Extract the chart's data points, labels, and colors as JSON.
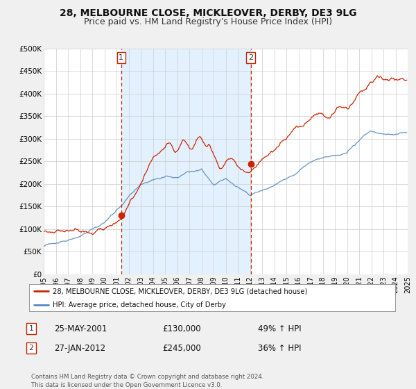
{
  "title": "28, MELBOURNE CLOSE, MICKLEOVER, DERBY, DE3 9LG",
  "subtitle": "Price paid vs. HM Land Registry's House Price Index (HPI)",
  "legend_line1": "28, MELBOURNE CLOSE, MICKLEOVER, DERBY, DE3 9LG (detached house)",
  "legend_line2": "HPI: Average price, detached house, City of Derby",
  "footnote": "Contains HM Land Registry data © Crown copyright and database right 2024.\nThis data is licensed under the Open Government Licence v3.0.",
  "transaction1_label": "1",
  "transaction1_date": "25-MAY-2001",
  "transaction1_price": "£130,000",
  "transaction1_hpi": "49% ↑ HPI",
  "transaction2_label": "2",
  "transaction2_date": "27-JAN-2012",
  "transaction2_price": "£245,000",
  "transaction2_hpi": "36% ↑ HPI",
  "marker1_x": 2001.39,
  "marker1_y": 130000,
  "marker2_x": 2012.07,
  "marker2_y": 245000,
  "vline1_x": 2001.39,
  "vline2_x": 2012.07,
  "xmin": 1995,
  "xmax": 2025,
  "ymin": 0,
  "ymax": 500000,
  "yticks": [
    0,
    50000,
    100000,
    150000,
    200000,
    250000,
    300000,
    350000,
    400000,
    450000,
    500000
  ],
  "ytick_labels": [
    "£0",
    "£50K",
    "£100K",
    "£150K",
    "£200K",
    "£250K",
    "£300K",
    "£350K",
    "£400K",
    "£450K",
    "£500K"
  ],
  "background_color": "#f0f0f0",
  "plot_bg_color": "#ffffff",
  "grid_color": "#cccccc",
  "red_color": "#cc2200",
  "blue_color": "#5588bb",
  "shade_color": "#ddeeff",
  "vline_color": "#cc2200",
  "title_fontsize": 10,
  "subtitle_fontsize": 9
}
